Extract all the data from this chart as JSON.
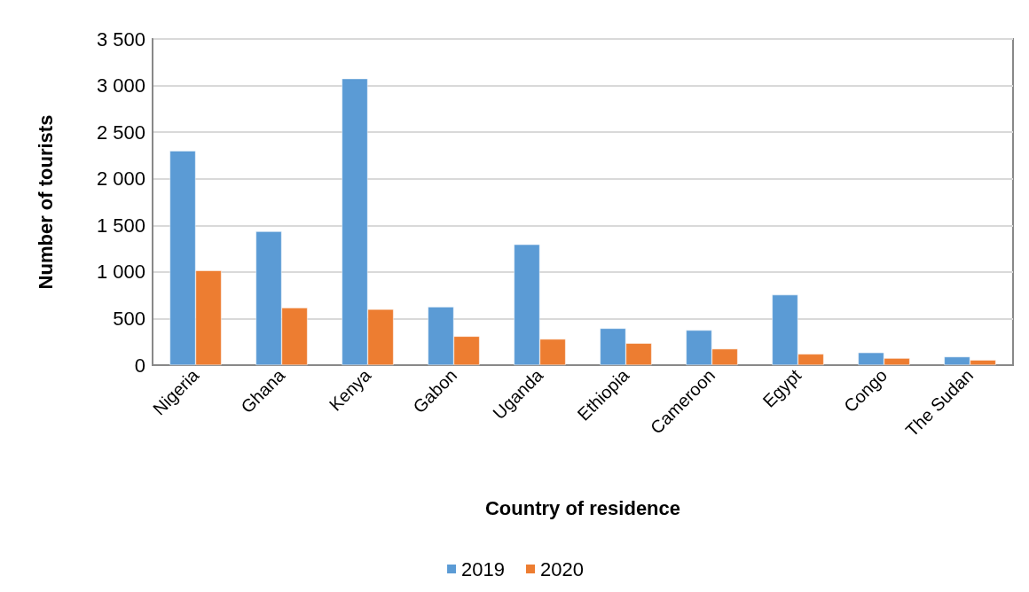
{
  "chart_data": {
    "type": "bar",
    "xlabel": "Country of residence",
    "ylabel": "Number of tourists",
    "categories": [
      "Nigeria",
      "Ghana",
      "Kenya",
      "Gabon",
      "Uganda",
      "Ethiopia",
      "Cameroon",
      "Egypt",
      "Congo",
      "The Sudan"
    ],
    "series": [
      {
        "name": "2019",
        "color": "#5b9bd5",
        "values": [
          2300,
          1435,
          3075,
          625,
          1295,
          395,
          375,
          755,
          135,
          90
        ]
      },
      {
        "name": "2020",
        "color": "#ed7d31",
        "values": [
          1015,
          615,
          600,
          310,
          280,
          235,
          175,
          120,
          75,
          55
        ]
      }
    ],
    "ylim": [
      0,
      3500
    ],
    "yticks": [
      0,
      500,
      {
        "value": 1000,
        "label": "1 000"
      },
      {
        "value": 1500,
        "label": "1 500"
      },
      {
        "value": 2000,
        "label": "2 000"
      },
      {
        "value": 2500,
        "label": "2 500"
      },
      {
        "value": 3000,
        "label": "3 000"
      },
      {
        "value": 3500,
        "label": "3 500"
      }
    ],
    "grid": "y",
    "legend": "bottom"
  }
}
